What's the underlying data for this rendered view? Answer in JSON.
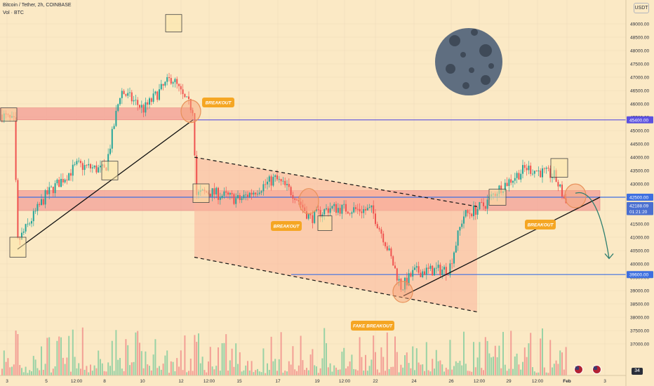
{
  "header": {
    "symbol_line": "Bitcoin / Tether, 2h, COINBASE",
    "volume_line": "Vol · BTC",
    "currency": "USDT"
  },
  "chart_data": {
    "type": "candlestick",
    "ylim": [
      36500,
      49500
    ],
    "y_ticks": [
      37000,
      37500,
      38000,
      38500,
      39000,
      39500,
      40000,
      40500,
      41000,
      41500,
      42000,
      42500,
      43000,
      43500,
      44000,
      44500,
      45000,
      45500,
      46000,
      46500,
      47000,
      47500,
      48000,
      48500,
      49000
    ],
    "x_ticks": [
      "3",
      "5",
      "12:00",
      "8",
      "10",
      "12",
      "12:00",
      "15",
      "17",
      "19",
      "12:00",
      "22",
      "24",
      "26",
      "12:00",
      "29",
      "12:00",
      "Feb",
      "3"
    ],
    "price_levels": [
      {
        "label": "45400.00",
        "value": 45400,
        "color": "#5b51e0"
      },
      {
        "label": "42500.00",
        "value": 42500,
        "color": "#3d6fe0"
      },
      {
        "label": "39600.00",
        "value": 39600,
        "color": "#3d6fe0"
      }
    ],
    "price_badges": [
      {
        "label": "42188.09",
        "value": 42188
      },
      {
        "label": "01:21:20",
        "value": 41960
      }
    ],
    "annotations": [
      "BREAKOUT",
      "BREAKOUT",
      "BREAKOUT",
      "FAKE BREAKOUT"
    ],
    "volume_badge": "34",
    "close_series": [
      {
        "x": "3",
        "close": 45600
      },
      {
        "x": "3",
        "close": 40800
      },
      {
        "x": "5",
        "close": 42600
      },
      {
        "x": "12:00",
        "close": 43700
      },
      {
        "x": "8",
        "close": 43500
      },
      {
        "x": "8",
        "close": 46500
      },
      {
        "x": "10",
        "close": 45800
      },
      {
        "x": "10",
        "close": 47000
      },
      {
        "x": "12",
        "close": 45800
      },
      {
        "x": "12",
        "close": 42600
      },
      {
        "x": "12:00",
        "close": 42700
      },
      {
        "x": "15",
        "close": 42400
      },
      {
        "x": "17",
        "close": 43200
      },
      {
        "x": "17",
        "close": 42600
      },
      {
        "x": "19",
        "close": 41700
      },
      {
        "x": "19",
        "close": 42100
      },
      {
        "x": "12:00",
        "close": 42000
      },
      {
        "x": "22",
        "close": 40900
      },
      {
        "x": "22",
        "close": 39100
      },
      {
        "x": "24",
        "close": 39700
      },
      {
        "x": "24",
        "close": 39800
      },
      {
        "x": "26",
        "close": 41800
      },
      {
        "x": "12:00",
        "close": 42200
      },
      {
        "x": "29",
        "close": 42800
      },
      {
        "x": "29",
        "close": 43600
      },
      {
        "x": "12:00",
        "close": 43300
      },
      {
        "x": "Feb",
        "close": 42200
      }
    ],
    "colors": {
      "up": "#26a69a",
      "down": "#ef5350",
      "grid": "#eedcbb",
      "supply_zone": "#f5a097"
    }
  }
}
